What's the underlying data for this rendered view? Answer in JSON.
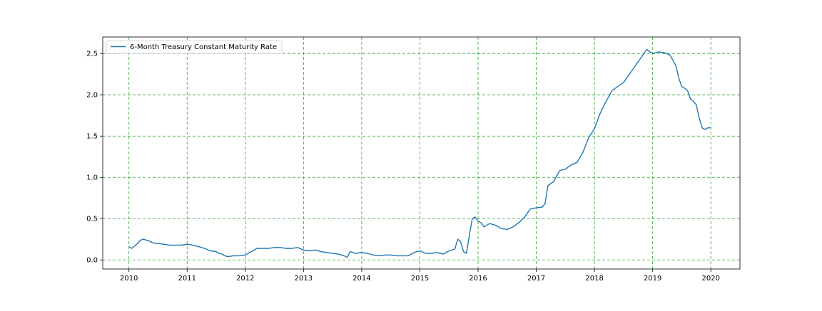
{
  "chart_data": {
    "type": "line",
    "title": "",
    "xlabel": "",
    "ylabel": "",
    "x_ticks": [
      "2010",
      "2011",
      "2012",
      "2013",
      "2014",
      "2015",
      "2016",
      "2017",
      "2018",
      "2019",
      "2020"
    ],
    "y_ticks": [
      "0.0",
      "0.5",
      "1.0",
      "1.5",
      "2.0",
      "2.5"
    ],
    "xlim": [
      2009.55,
      2020.5
    ],
    "ylim": [
      -0.11,
      2.7
    ],
    "grid": true,
    "grid_color": "#2ca02c",
    "line_color": "#1f77b4",
    "legend_position": "upper left",
    "series": [
      {
        "name": "6-Month Treasury Constant Maturity Rate",
        "x": [
          2010.0,
          2010.05,
          2010.1,
          2010.15,
          2010.2,
          2010.25,
          2010.3,
          2010.35,
          2010.4,
          2010.45,
          2010.5,
          2010.6,
          2010.7,
          2010.8,
          2010.9,
          2011.0,
          2011.1,
          2011.2,
          2011.3,
          2011.4,
          2011.5,
          2011.55,
          2011.6,
          2011.65,
          2011.7,
          2011.8,
          2011.9,
          2012.0,
          2012.1,
          2012.2,
          2012.3,
          2012.4,
          2012.5,
          2012.6,
          2012.7,
          2012.8,
          2012.9,
          2013.0,
          2013.1,
          2013.2,
          2013.3,
          2013.4,
          2013.5,
          2013.6,
          2013.7,
          2013.75,
          2013.8,
          2013.9,
          2014.0,
          2014.1,
          2014.2,
          2014.3,
          2014.4,
          2014.5,
          2014.6,
          2014.7,
          2014.8,
          2014.9,
          2015.0,
          2015.1,
          2015.2,
          2015.3,
          2015.4,
          2015.5,
          2015.6,
          2015.65,
          2015.7,
          2015.75,
          2015.8,
          2015.85,
          2015.9,
          2015.95,
          2016.0,
          2016.05,
          2016.1,
          2016.2,
          2016.3,
          2016.4,
          2016.5,
          2016.6,
          2016.7,
          2016.8,
          2016.9,
          2017.0,
          2017.1,
          2017.15,
          2017.2,
          2017.3,
          2017.4,
          2017.5,
          2017.6,
          2017.7,
          2017.8,
          2017.9,
          2018.0,
          2018.1,
          2018.2,
          2018.3,
          2018.4,
          2018.5,
          2018.6,
          2018.7,
          2018.8,
          2018.9,
          2018.95,
          2019.0,
          2019.1,
          2019.2,
          2019.3,
          2019.4,
          2019.45,
          2019.5,
          2019.55,
          2019.6,
          2019.65,
          2019.7,
          2019.75,
          2019.8,
          2019.85,
          2019.9,
          2019.95,
          2020.0
        ],
        "values": [
          0.16,
          0.14,
          0.17,
          0.2,
          0.24,
          0.25,
          0.24,
          0.23,
          0.21,
          0.2,
          0.2,
          0.19,
          0.18,
          0.18,
          0.18,
          0.19,
          0.18,
          0.16,
          0.14,
          0.11,
          0.1,
          0.08,
          0.07,
          0.05,
          0.04,
          0.05,
          0.05,
          0.06,
          0.1,
          0.14,
          0.14,
          0.14,
          0.15,
          0.15,
          0.14,
          0.14,
          0.15,
          0.12,
          0.11,
          0.12,
          0.1,
          0.09,
          0.08,
          0.07,
          0.05,
          0.03,
          0.1,
          0.08,
          0.09,
          0.08,
          0.06,
          0.05,
          0.06,
          0.06,
          0.05,
          0.05,
          0.05,
          0.09,
          0.11,
          0.08,
          0.08,
          0.09,
          0.07,
          0.11,
          0.13,
          0.25,
          0.22,
          0.1,
          0.08,
          0.3,
          0.5,
          0.52,
          0.47,
          0.45,
          0.4,
          0.44,
          0.42,
          0.38,
          0.37,
          0.4,
          0.45,
          0.52,
          0.62,
          0.63,
          0.64,
          0.68,
          0.9,
          0.95,
          1.08,
          1.1,
          1.15,
          1.18,
          1.3,
          1.48,
          1.59,
          1.78,
          1.92,
          2.05,
          2.1,
          2.15,
          2.25,
          2.35,
          2.45,
          2.55,
          2.52,
          2.5,
          2.52,
          2.51,
          2.48,
          2.35,
          2.2,
          2.1,
          2.08,
          2.05,
          1.95,
          1.92,
          1.88,
          1.72,
          1.6,
          1.58,
          1.6,
          1.6
        ]
      }
    ]
  }
}
